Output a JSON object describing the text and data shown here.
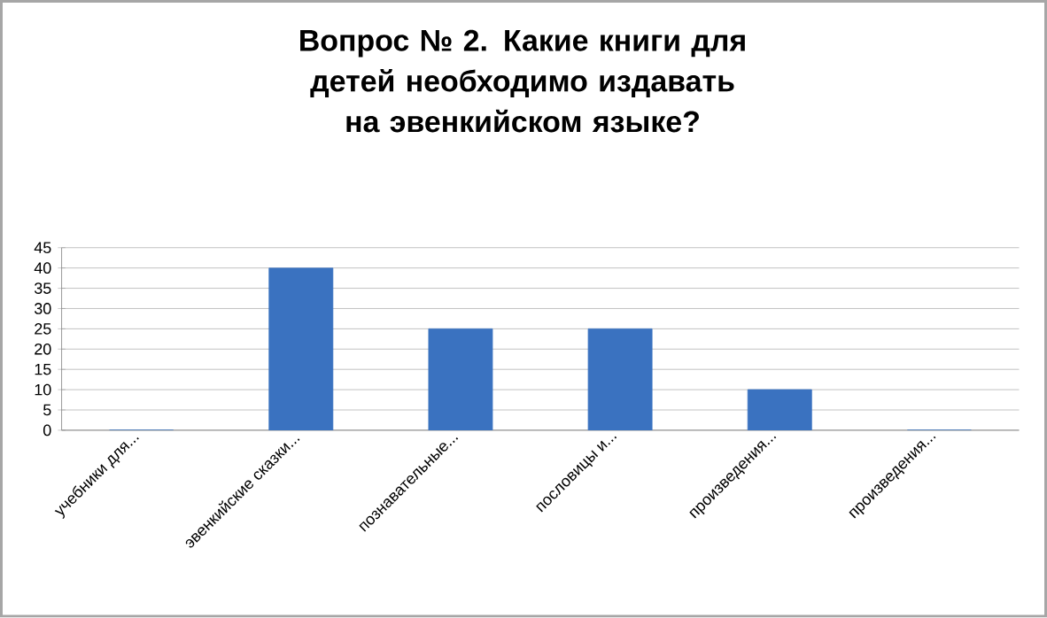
{
  "chart_data": {
    "type": "bar",
    "title": "Вопрос №  2.  Какие книги для детей необходимо издавать на эвенкийском языке?",
    "categories": [
      "учебники для...",
      "эвенкийские сказки...",
      "познавательные...",
      "пословицы и...",
      "произведения...",
      "произведения..."
    ],
    "values": [
      0,
      40,
      25,
      25,
      10,
      0
    ],
    "color": "#3a72c0",
    "ylim": [
      0,
      45
    ],
    "yticks": [
      0,
      5,
      10,
      15,
      20,
      25,
      30,
      35,
      40,
      45
    ],
    "grid": "y"
  }
}
